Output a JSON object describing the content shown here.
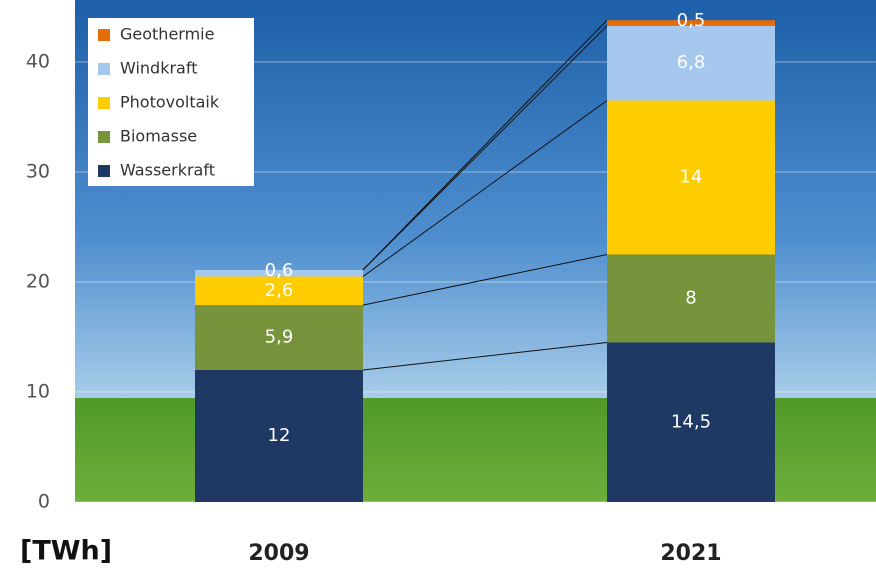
{
  "chart_data": {
    "type": "stacked-bar",
    "y_label": "[TWh]",
    "categories": [
      "2009",
      "2021"
    ],
    "series": [
      {
        "name": "Wasserkraft",
        "color": "#1f3864",
        "values": [
          12,
          14.5
        ],
        "value_labels": [
          "12",
          "14,5"
        ]
      },
      {
        "name": "Biomasse",
        "color": "#77933c",
        "values": [
          5.9,
          8
        ],
        "value_labels": [
          "5,9",
          "8"
        ]
      },
      {
        "name": "Photovoltaik",
        "color": "#ffcc00",
        "values": [
          2.6,
          14
        ],
        "value_labels": [
          "2,6",
          "14"
        ]
      },
      {
        "name": "Windkraft",
        "color": "#a6c8ee",
        "values": [
          0.6,
          6.8
        ],
        "value_labels": [
          "0,6",
          "6,8"
        ]
      },
      {
        "name": "Geothermie",
        "color": "#e46c0a",
        "values": [
          null,
          0.5
        ],
        "value_labels": [
          null,
          "0,5"
        ]
      }
    ],
    "ylim": [
      0,
      45
    ],
    "yticks": [
      0,
      10,
      20,
      30,
      40
    ],
    "grid": true
  }
}
